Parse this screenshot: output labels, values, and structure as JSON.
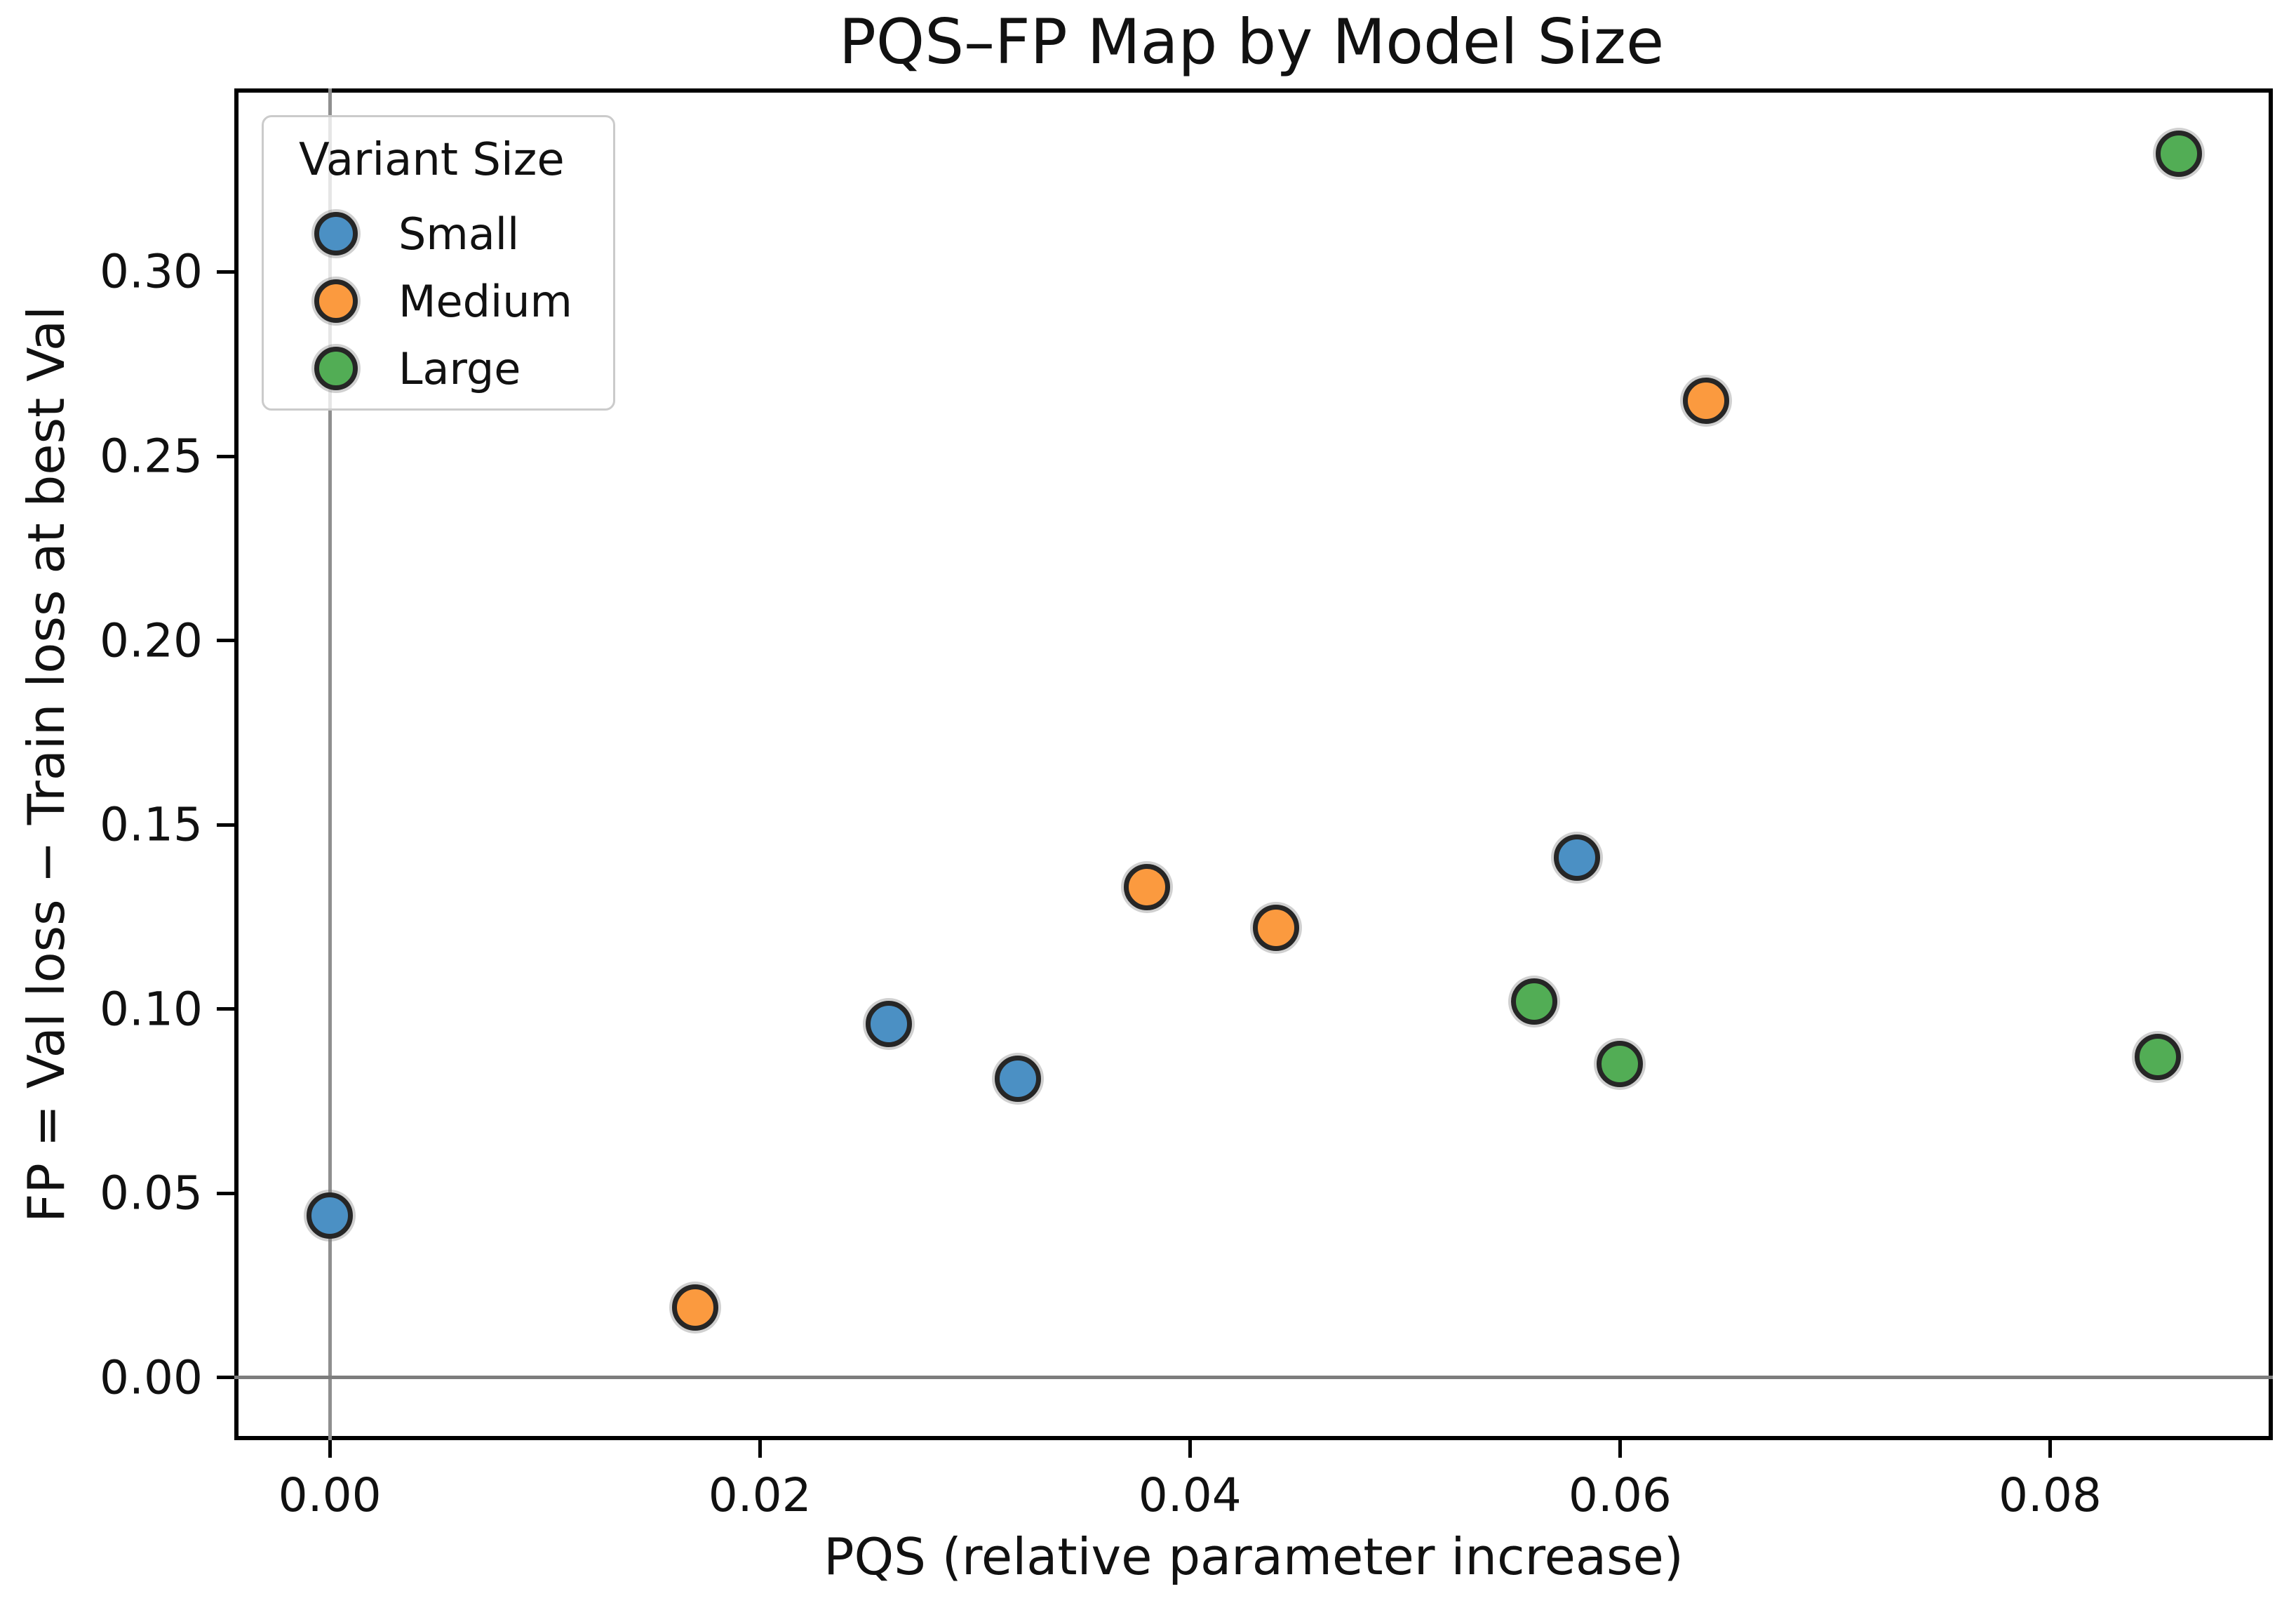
{
  "title": "PQS–FP Map by Model Size",
  "axes": {
    "xlabel": "PQS (relative parameter increase)",
    "ylabel": "FP = Val loss − Train loss at best Val",
    "x_tick_labels": [
      "0.00",
      "0.02",
      "0.04",
      "0.06",
      "0.08"
    ],
    "x_tick_values": [
      0.0,
      0.02,
      0.04,
      0.06,
      0.08
    ],
    "y_tick_labels": [
      "0.00",
      "0.05",
      "0.10",
      "0.15",
      "0.20",
      "0.25",
      "0.30"
    ],
    "y_tick_values": [
      0.0,
      0.05,
      0.1,
      0.15,
      0.2,
      0.25,
      0.3
    ]
  },
  "legend": {
    "title": "Variant Size",
    "entries": [
      {
        "label": "Small",
        "color": "#4b90c4"
      },
      {
        "label": "Medium",
        "color": "#fb9a3f"
      },
      {
        "label": "Large",
        "color": "#52ad55"
      }
    ]
  },
  "colors": {
    "marker_edge": "#262626",
    "zero_line": "#8f8f8f",
    "spine": "#000000"
  },
  "chart_data": {
    "type": "scatter",
    "title": "PQS–FP Map by Model Size",
    "xlabel": "PQS (relative parameter increase)",
    "ylabel": "FP = Val loss − Train loss at best Val",
    "xlim": [
      -0.00444,
      0.09036
    ],
    "ylim": [
      -0.017,
      0.3498
    ],
    "grid": "reference lines at x=0 and y=0 only",
    "legend_position": "upper left",
    "series": [
      {
        "name": "Small",
        "color": "#4b90c4",
        "points": [
          [
            0.0,
            0.044
          ],
          [
            0.026,
            0.096
          ],
          [
            0.032,
            0.081
          ],
          [
            0.058,
            0.141
          ]
        ]
      },
      {
        "name": "Medium",
        "color": "#fb9a3f",
        "points": [
          [
            0.017,
            0.019
          ],
          [
            0.038,
            0.133
          ],
          [
            0.044,
            0.122
          ],
          [
            0.064,
            0.265
          ]
        ]
      },
      {
        "name": "Large",
        "color": "#52ad55",
        "points": [
          [
            0.056,
            0.102
          ],
          [
            0.06,
            0.085
          ],
          [
            0.085,
            0.087
          ],
          [
            0.086,
            0.332
          ]
        ]
      }
    ]
  }
}
